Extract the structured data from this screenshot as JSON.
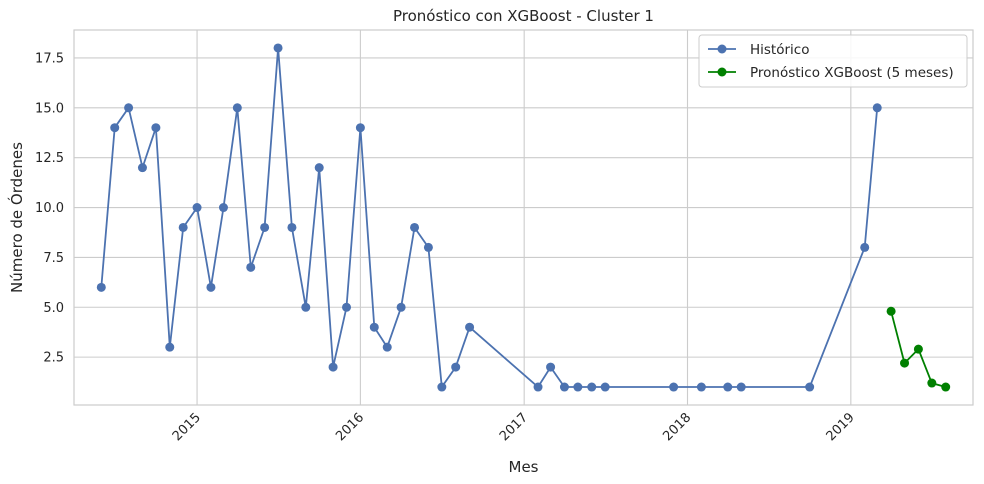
{
  "chart_data": {
    "type": "line",
    "title": "Pronóstico con XGBoost - Cluster 1",
    "xlabel": "Mes",
    "ylabel": "Número de Órdenes",
    "x_tick_labels": [
      "2015",
      "2016",
      "2017",
      "2018",
      "2019"
    ],
    "x_tick_dates": [
      "2015-01-01",
      "2016-01-01",
      "2017-01-01",
      "2018-01-01",
      "2019-01-01"
    ],
    "xlim": [
      "2014-04-01",
      "2019-10-01"
    ],
    "y_ticks": [
      2.5,
      5.0,
      7.5,
      10.0,
      12.5,
      15.0,
      17.5
    ],
    "y_tick_labels": [
      "2.5",
      "5.0",
      "7.5",
      "10.0",
      "12.5",
      "15.0",
      "17.5"
    ],
    "ylim": [
      0.1,
      18.9
    ],
    "grid": true,
    "legend_position": "top-right",
    "series": [
      {
        "name": "Histórico",
        "color": "#4c72b0",
        "marker": "circle",
        "points": [
          [
            "2014-06-01",
            6
          ],
          [
            "2014-07-01",
            14
          ],
          [
            "2014-08-01",
            15
          ],
          [
            "2014-09-01",
            12
          ],
          [
            "2014-10-01",
            14
          ],
          [
            "2014-11-01",
            3
          ],
          [
            "2014-12-01",
            9
          ],
          [
            "2015-01-01",
            10
          ],
          [
            "2015-02-01",
            6
          ],
          [
            "2015-03-01",
            10
          ],
          [
            "2015-04-01",
            15
          ],
          [
            "2015-05-01",
            7
          ],
          [
            "2015-06-01",
            9
          ],
          [
            "2015-07-01",
            18
          ],
          [
            "2015-08-01",
            9
          ],
          [
            "2015-09-01",
            5
          ],
          [
            "2015-10-01",
            12
          ],
          [
            "2015-11-01",
            2
          ],
          [
            "2015-12-01",
            5
          ],
          [
            "2016-01-01",
            14
          ],
          [
            "2016-02-01",
            4
          ],
          [
            "2016-03-01",
            3
          ],
          [
            "2016-04-01",
            5
          ],
          [
            "2016-05-01",
            9
          ],
          [
            "2016-06-01",
            8
          ],
          [
            "2016-07-01",
            1
          ],
          [
            "2016-08-01",
            2
          ],
          [
            "2016-09-01",
            4
          ],
          [
            "2017-02-01",
            1
          ],
          [
            "2017-03-01",
            2
          ],
          [
            "2017-04-01",
            1
          ],
          [
            "2017-05-01",
            1
          ],
          [
            "2017-06-01",
            1
          ],
          [
            "2017-07-01",
            1
          ],
          [
            "2017-12-01",
            1
          ],
          [
            "2018-02-01",
            1
          ],
          [
            "2018-04-01",
            1
          ],
          [
            "2018-05-01",
            1
          ],
          [
            "2018-10-01",
            1
          ],
          [
            "2019-02-01",
            8
          ],
          [
            "2019-03-01",
            15
          ]
        ]
      },
      {
        "name": "Pronóstico XGBoost (5 meses)",
        "color": "#008000",
        "marker": "circle",
        "points": [
          [
            "2019-04-01",
            4.8
          ],
          [
            "2019-05-01",
            2.2
          ],
          [
            "2019-06-01",
            2.9
          ],
          [
            "2019-07-01",
            1.2
          ],
          [
            "2019-08-01",
            1.0
          ]
        ]
      }
    ]
  }
}
